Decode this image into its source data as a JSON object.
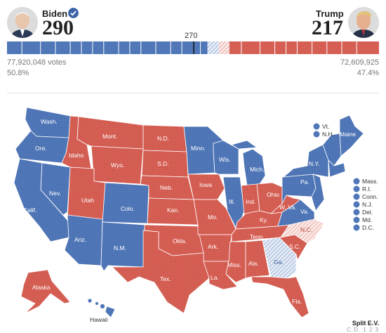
{
  "biden": {
    "name": "Biden",
    "electoral_votes": "290",
    "votes": "77,920,048 votes",
    "percent": "50.8%",
    "color": "#5077b8"
  },
  "trump": {
    "name": "Trump",
    "electoral_votes": "217",
    "votes": "72,609,925",
    "percent": "47.4%",
    "color": "#d65f54"
  },
  "threshold_label": "270",
  "bar": {
    "biden_fraction": 0.539,
    "threshold_fraction": 0.502,
    "undecided_fraction": 0.059,
    "undecided_biden_lean_fraction": 0.03
  },
  "map_labels": {
    "wash": "Wash.",
    "ore": "Ore.",
    "calif": "Calif.",
    "nev": "Nev.",
    "idaho": "Idaho",
    "mont": "Mont.",
    "wyo": "Wyo.",
    "utah": "Utah",
    "colo": "Colo.",
    "ariz": "Ariz.",
    "nm": "N.M.",
    "nd": "N.D.",
    "sd": "S.D.",
    "neb": "Neb.",
    "kan": "Kan.",
    "okla": "Okla.",
    "tex": "Tex.",
    "minn": "Minn.",
    "iowa": "Iowa",
    "mo": "Mo.",
    "ark": "Ark.",
    "la": "La.",
    "wis": "Wis.",
    "ill": "Ill.",
    "mich": "Mich.",
    "ind": "Ind.",
    "ohio": "Ohio",
    "ky": "Ky.",
    "tenn": "Tenn.",
    "miss": "Miss.",
    "ala": "Ala.",
    "ga": "Ga.",
    "fla": "Fla.",
    "sc": "S.C.",
    "nc": "N.C.",
    "va": "Va.",
    "wva": "W. Va.",
    "pa": "Pa.",
    "ny": "N.Y.",
    "maine": "Maine",
    "alaska": "Alaska",
    "hawaii": "Hawaii"
  },
  "small_states_top": [
    {
      "label": "Vt.",
      "party": "biden"
    },
    {
      "label": "N.H.",
      "party": "biden"
    }
  ],
  "small_states_right": [
    {
      "label": "Mass.",
      "party": "biden"
    },
    {
      "label": "R.I.",
      "party": "biden"
    },
    {
      "label": "Conn.",
      "party": "biden"
    },
    {
      "label": "N.J.",
      "party": "biden"
    },
    {
      "label": "Del.",
      "party": "biden"
    },
    {
      "label": "Md.",
      "party": "biden"
    },
    {
      "label": "D.C.",
      "party": "biden"
    }
  ],
  "legend": {
    "title": "Split E.V.",
    "items": "C.D.   1  2  3"
  }
}
